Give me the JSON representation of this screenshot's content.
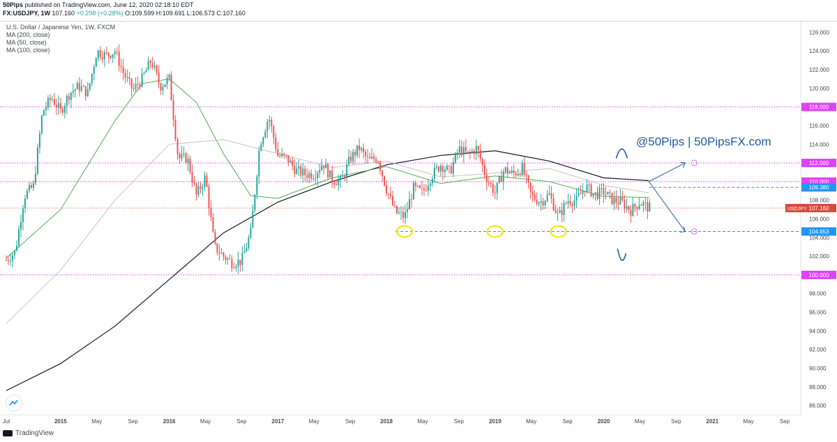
{
  "header": {
    "publisher": "50Pips",
    "published_text": "published on TradingView.com, June 12, 2020 02:18:10 EDT",
    "symbol": "FX:USDJPY, 1W",
    "last": "107.160",
    "change": "+0.298 (+0.28%)",
    "open": "O:109.599",
    "high": "H:109.691",
    "low": "L:106.573",
    "close": "C:107.160"
  },
  "legend": {
    "series_title": "U.S. Dollar / Japanese Yen, 1W, FXCM",
    "ma1": "MA (200, close)",
    "ma2": "MA (50, close)",
    "ma3": "MA (100, close)"
  },
  "watermark": "@50Pips | 50PipsFX.com",
  "footer": {
    "brand": "TradingView"
  },
  "colors": {
    "up": "#26a69a",
    "down": "#ef5350",
    "ma200": "#131722",
    "ma50": "#4caf50",
    "ma100": "#c9c2bd",
    "level": "#e040fb",
    "support": "#2196f3",
    "annotation": "#1e5aa0",
    "highlight": "#f3e200",
    "price": "#d84a3a"
  },
  "chart_data": {
    "type": "candlestick",
    "title": "U.S. Dollar / Japanese Yen, 1W, FXCM",
    "ylim": [
      85,
      127
    ],
    "y_ticks": [
      "86.000",
      "88.000",
      "90.000",
      "92.000",
      "94.000",
      "96.000",
      "98.000",
      "100.000",
      "102.000",
      "104.000",
      "106.000",
      "108.000",
      "110.000",
      "112.000",
      "114.000",
      "116.000",
      "118.000",
      "120.000",
      "122.000",
      "124.000",
      "126.000"
    ],
    "x_start": "2014-07",
    "x_end": "2021-10",
    "x_ticks": [
      {
        "date": "2014-07",
        "label": "Jul"
      },
      {
        "date": "2015-01",
        "label": "2015"
      },
      {
        "date": "2015-05",
        "label": "May"
      },
      {
        "date": "2015-09",
        "label": "Sep"
      },
      {
        "date": "2016-01",
        "label": "2016"
      },
      {
        "date": "2016-05",
        "label": "May"
      },
      {
        "date": "2016-09",
        "label": "Sep"
      },
      {
        "date": "2017-01",
        "label": "2017"
      },
      {
        "date": "2017-05",
        "label": "May"
      },
      {
        "date": "2017-09",
        "label": "Sep"
      },
      {
        "date": "2018-01",
        "label": "2018"
      },
      {
        "date": "2018-05",
        "label": "May"
      },
      {
        "date": "2018-09",
        "label": "Sep"
      },
      {
        "date": "2019-01",
        "label": "2019"
      },
      {
        "date": "2019-05",
        "label": "May"
      },
      {
        "date": "2019-09",
        "label": "Sep"
      },
      {
        "date": "2020-01",
        "label": "2020"
      },
      {
        "date": "2020-05",
        "label": "May"
      },
      {
        "date": "2020-09",
        "label": "Sep"
      },
      {
        "date": "2021-01",
        "label": "2021"
      },
      {
        "date": "2021-05",
        "label": "May"
      },
      {
        "date": "2021-09",
        "label": "Sep"
      }
    ],
    "price_path": [
      [
        "2014-07",
        101.6
      ],
      [
        "2014-08",
        102.5
      ],
      [
        "2014-09",
        108.5
      ],
      [
        "2014-10",
        109.5
      ],
      [
        "2014-11",
        117.5
      ],
      [
        "2014-12",
        119.0
      ],
      [
        "2015-01",
        117.5
      ],
      [
        "2015-02",
        119.5
      ],
      [
        "2015-03",
        120.2
      ],
      [
        "2015-04",
        119.5
      ],
      [
        "2015-05",
        124.0
      ],
      [
        "2015-06",
        123.5
      ],
      [
        "2015-07",
        124.0
      ],
      [
        "2015-08",
        121.5
      ],
      [
        "2015-09",
        119.8
      ],
      [
        "2015-10",
        121.0
      ],
      [
        "2015-11",
        123.0
      ],
      [
        "2015-12",
        120.2
      ],
      [
        "2016-01",
        121.0
      ],
      [
        "2016-02",
        112.5
      ],
      [
        "2016-03",
        112.5
      ],
      [
        "2016-04",
        108.5
      ],
      [
        "2016-05",
        110.5
      ],
      [
        "2016-06",
        103.0
      ],
      [
        "2016-07",
        102.0
      ],
      [
        "2016-08",
        101.3
      ],
      [
        "2016-09",
        101.5
      ],
      [
        "2016-10",
        104.5
      ],
      [
        "2016-11",
        114.0
      ],
      [
        "2016-12",
        117.0
      ],
      [
        "2017-01",
        112.8
      ],
      [
        "2017-02",
        112.5
      ],
      [
        "2017-03",
        111.2
      ],
      [
        "2017-04",
        110.8
      ],
      [
        "2017-05",
        110.8
      ],
      [
        "2017-06",
        112.0
      ],
      [
        "2017-07",
        110.2
      ],
      [
        "2017-08",
        110.0
      ],
      [
        "2017-09",
        112.5
      ],
      [
        "2017-10",
        113.6
      ],
      [
        "2017-11",
        112.2
      ],
      [
        "2017-12",
        112.6
      ],
      [
        "2018-01",
        109.2
      ],
      [
        "2018-02",
        106.7
      ],
      [
        "2018-03",
        106.2
      ],
      [
        "2018-04",
        109.3
      ],
      [
        "2018-05",
        108.8
      ],
      [
        "2018-06",
        110.7
      ],
      [
        "2018-07",
        111.8
      ],
      [
        "2018-08",
        111.0
      ],
      [
        "2018-09",
        113.5
      ],
      [
        "2018-10",
        112.9
      ],
      [
        "2018-11",
        113.6
      ],
      [
        "2018-12",
        110.5
      ],
      [
        "2019-01",
        108.8
      ],
      [
        "2019-02",
        111.3
      ],
      [
        "2019-03",
        110.8
      ],
      [
        "2019-04",
        111.4
      ],
      [
        "2019-05",
        108.5
      ],
      [
        "2019-06",
        107.8
      ],
      [
        "2019-07",
        108.6
      ],
      [
        "2019-08",
        106.2
      ],
      [
        "2019-09",
        108.0
      ],
      [
        "2019-10",
        108.0
      ],
      [
        "2019-11",
        109.5
      ],
      [
        "2019-12",
        108.6
      ],
      [
        "2020-01",
        108.9
      ],
      [
        "2020-02",
        108.0
      ],
      [
        "2020-03",
        107.8
      ],
      [
        "2020-04",
        106.9
      ],
      [
        "2020-05",
        107.8
      ],
      [
        "2020-06",
        107.16
      ]
    ],
    "series": [
      {
        "name": "MA (200, close)",
        "points": [
          [
            "2014-07",
            87.6
          ],
          [
            "2015-01",
            90.5
          ],
          [
            "2015-07",
            94.5
          ],
          [
            "2016-01",
            99.5
          ],
          [
            "2016-07",
            104.5
          ],
          [
            "2017-01",
            107.8
          ],
          [
            "2017-07",
            110.0
          ],
          [
            "2018-01",
            111.8
          ],
          [
            "2018-07",
            112.8
          ],
          [
            "2019-01",
            113.3
          ],
          [
            "2019-07",
            112.2
          ],
          [
            "2020-01",
            110.4
          ],
          [
            "2020-06",
            110.1
          ]
        ]
      },
      {
        "name": "MA (50, close)",
        "points": [
          [
            "2014-07",
            101.8
          ],
          [
            "2015-01",
            107.0
          ],
          [
            "2015-07",
            116.5
          ],
          [
            "2015-10",
            120.5
          ],
          [
            "2016-01",
            121.0
          ],
          [
            "2016-04",
            118.5
          ],
          [
            "2016-07",
            113.0
          ],
          [
            "2016-10",
            108.5
          ],
          [
            "2017-01",
            108.2
          ],
          [
            "2017-07",
            110.4
          ],
          [
            "2018-01",
            111.6
          ],
          [
            "2018-07",
            109.8
          ],
          [
            "2019-01",
            110.6
          ],
          [
            "2019-07",
            110.0
          ],
          [
            "2020-01",
            108.4
          ],
          [
            "2020-06",
            108.3
          ]
        ]
      },
      {
        "name": "MA (100, close)",
        "points": [
          [
            "2014-07",
            94.8
          ],
          [
            "2015-01",
            100.5
          ],
          [
            "2015-07",
            108.0
          ],
          [
            "2016-01",
            114.0
          ],
          [
            "2016-07",
            114.5
          ],
          [
            "2017-01",
            113.0
          ],
          [
            "2017-07",
            111.5
          ],
          [
            "2018-01",
            112.2
          ],
          [
            "2018-07",
            110.5
          ],
          [
            "2019-01",
            110.9
          ],
          [
            "2019-07",
            111.4
          ],
          [
            "2020-01",
            109.6
          ],
          [
            "2020-06",
            108.8
          ]
        ]
      }
    ],
    "levels": [
      {
        "price": 118.0,
        "label": "118.000",
        "kind": "resistance"
      },
      {
        "price": 112.0,
        "label": "112.000",
        "kind": "resistance"
      },
      {
        "price": 110.0,
        "label": "110.000",
        "kind": "resistance"
      },
      {
        "price": 109.38,
        "label": "109.380",
        "kind": "dashed"
      },
      {
        "price": 104.653,
        "label": "104.653",
        "kind": "support"
      },
      {
        "price": 100.0,
        "label": "100.000",
        "kind": "support"
      }
    ],
    "last_price": {
      "price": 107.16,
      "symbol": "USDJPY",
      "label": "107.160"
    },
    "highlights": [
      {
        "date": "2018-03",
        "price": 104.65
      },
      {
        "date": "2019-01",
        "price": 104.65
      },
      {
        "date": "2019-08",
        "price": 104.65
      }
    ],
    "projection": {
      "start": [
        "2020-06",
        110.0
      ],
      "up_to": [
        "2020-10",
        112.0
      ],
      "down_to": [
        "2020-10",
        104.65
      ]
    }
  }
}
